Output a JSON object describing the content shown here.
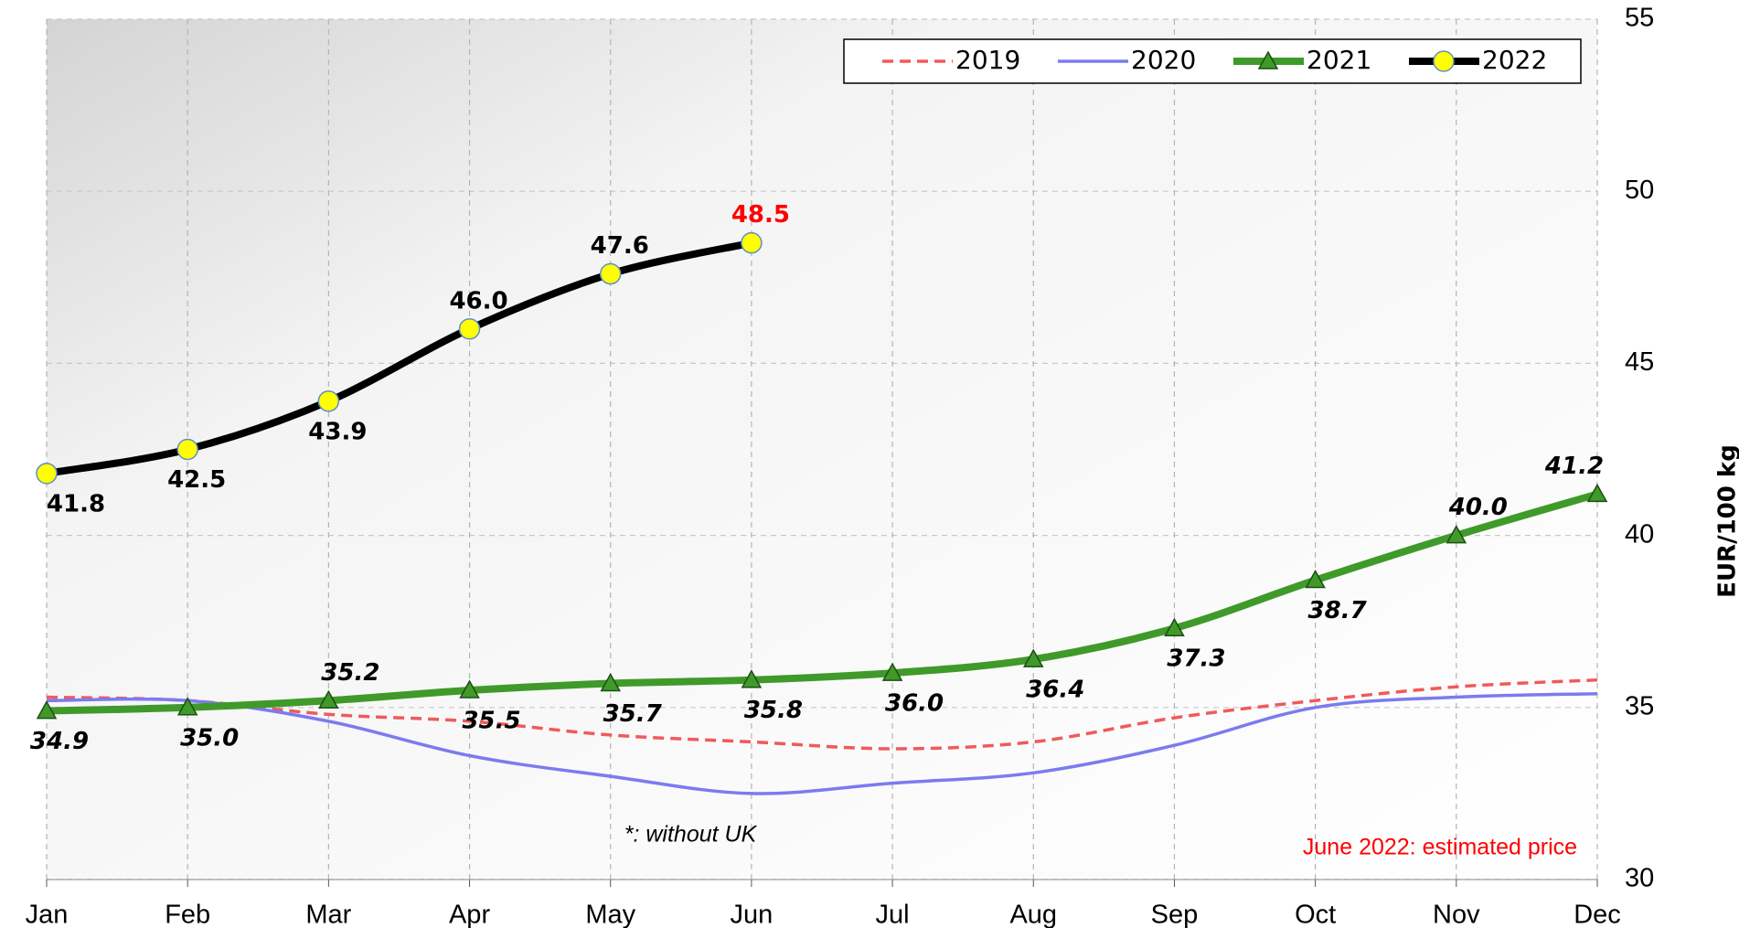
{
  "chart_data": {
    "type": "line",
    "categories": [
      "Jan",
      "Feb",
      "Mar",
      "Apr",
      "May",
      "Jun",
      "Jul",
      "Aug",
      "Sep",
      "Oct",
      "Nov",
      "Dec"
    ],
    "series": [
      {
        "name": "2019",
        "color": "#f05a5a",
        "line_style": "dashed",
        "marker": "none",
        "values": [
          35.3,
          35.2,
          34.8,
          34.6,
          34.2,
          34.0,
          33.8,
          34.0,
          34.7,
          35.2,
          35.6,
          35.8
        ]
      },
      {
        "name": "2020",
        "color": "#7b7bef",
        "line_style": "solid",
        "marker": "none",
        "values": [
          35.2,
          35.2,
          34.6,
          33.6,
          33.0,
          32.5,
          32.8,
          33.1,
          33.9,
          35.0,
          35.3,
          35.4
        ]
      },
      {
        "name": "2021",
        "color": "#3f9a2a",
        "line_style": "solid",
        "marker": "triangle",
        "values": [
          34.9,
          35.0,
          35.2,
          35.5,
          35.7,
          35.8,
          36.0,
          36.4,
          37.3,
          38.7,
          40.0,
          41.2
        ],
        "value_labels": [
          "34.9",
          "35.0",
          "35.2",
          "35.5",
          "35.7",
          "35.8",
          "36.0",
          "36.4",
          "37.3",
          "38.7",
          "40.0",
          "41.2"
        ]
      },
      {
        "name": "2022",
        "color": "#000000",
        "line_style": "solid",
        "marker": "circle",
        "values": [
          41.8,
          42.5,
          43.9,
          46.0,
          47.6,
          48.5,
          null,
          null,
          null,
          null,
          null,
          null
        ],
        "value_labels": [
          "41.8",
          "42.5",
          "43.9",
          "46.0",
          "47.6",
          "48.5",
          null,
          null,
          null,
          null,
          null,
          null
        ]
      }
    ],
    "y_axis_label": "EUR/100 kg",
    "ylim": [
      30,
      55
    ],
    "yticks": [
      30,
      35,
      40,
      45,
      50,
      55
    ],
    "grid": true,
    "legend": "top-right",
    "annotations": [
      "*: without UK",
      "June 2022: estimated price"
    ]
  }
}
